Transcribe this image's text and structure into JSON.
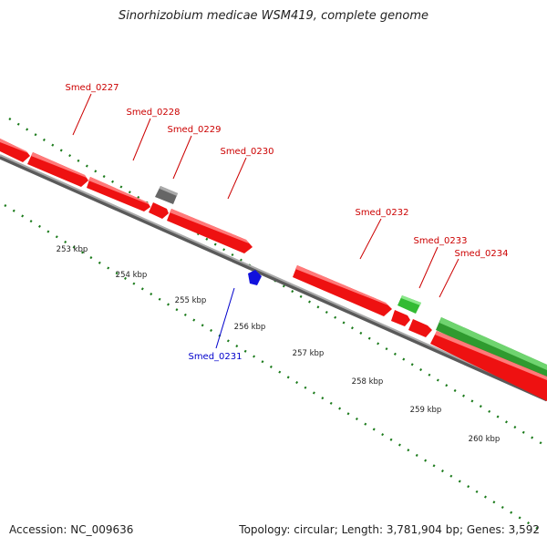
{
  "title": "Sinorhizobium medicae WSM419, complete genome",
  "footer": {
    "accession_label": "Accession:",
    "accession": "NC_009636",
    "topology_label": "Topology:",
    "topology": "circular",
    "length_label": "Length:",
    "length": "3,781,904 bp",
    "genes_label": "Genes:",
    "genes": "3,592"
  },
  "colors": {
    "forward_gene": "#ee1111",
    "forward_label": "#cc0000",
    "reverse_label": "#0000cc",
    "reverse_gene": "#1111dd",
    "green_gene": "#33bb33",
    "grey_gene": "#777777",
    "backbone": "#8a8a8a",
    "tick": "#1a7a1a"
  },
  "scale_ticks": [
    "253 kbp",
    "254 kbp",
    "255 kbp",
    "256 kbp",
    "257 kbp",
    "258 kbp",
    "259 kbp",
    "260 kbp"
  ],
  "genes": [
    {
      "name": "Smed_0227",
      "strand": "forward",
      "color": "red"
    },
    {
      "name": "Smed_0228",
      "strand": "forward",
      "color": "red"
    },
    {
      "name": "Smed_0229",
      "strand": "forward",
      "color": "grey"
    },
    {
      "name": "Smed_0230",
      "strand": "forward",
      "color": "red"
    },
    {
      "name": "Smed_0231",
      "strand": "reverse",
      "color": "blue"
    },
    {
      "name": "Smed_0232",
      "strand": "forward",
      "color": "red"
    },
    {
      "name": "Smed_0233",
      "strand": "forward",
      "color": "green"
    },
    {
      "name": "Smed_0234",
      "strand": "forward",
      "color": "red"
    }
  ]
}
